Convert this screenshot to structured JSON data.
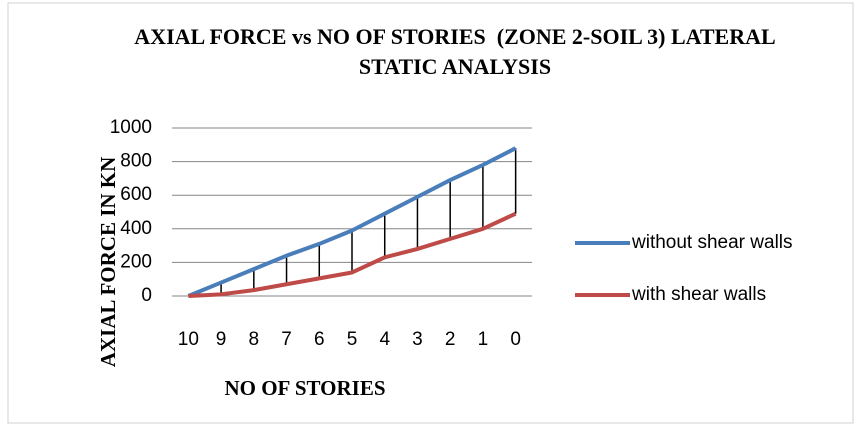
{
  "chart_data": {
    "type": "line",
    "title": "AXIAL FORCE vs NO OF STORIES  (ZONE 2-SOIL 3) LATERAL STATIC ANALYSIS",
    "x_label": "NO OF STORIES",
    "y_label": "AXIAL FORCE IN KN",
    "categories": [
      "10",
      "9",
      "8",
      "7",
      "6",
      "5",
      "4",
      "3",
      "2",
      "1",
      "0"
    ],
    "series": [
      {
        "name": "without shear walls",
        "color": "#4a7ebb",
        "values": [
          0,
          80,
          160,
          240,
          310,
          390,
          490,
          590,
          690,
          780,
          880
        ]
      },
      {
        "name": "with shear walls",
        "color": "#be4b48",
        "values": [
          0,
          10,
          35,
          70,
          105,
          140,
          230,
          280,
          340,
          400,
          490
        ]
      }
    ],
    "ylim": [
      0,
      1000
    ],
    "yticks": [
      0,
      200,
      400,
      600,
      800,
      1000
    ],
    "grid": true,
    "hilo_lines": true,
    "legend": "right"
  }
}
